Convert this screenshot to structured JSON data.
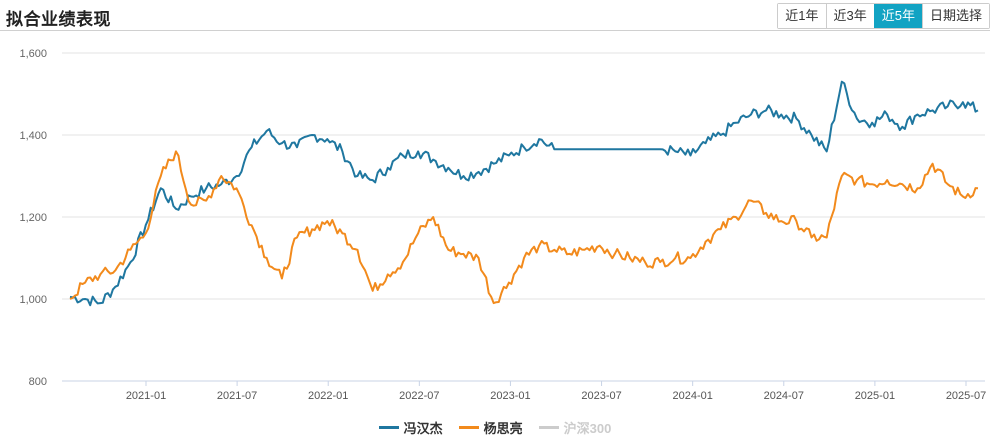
{
  "header": {
    "title": "拟合业绩表现"
  },
  "range_buttons": [
    {
      "label": "近1年",
      "active": false
    },
    {
      "label": "近3年",
      "active": false
    },
    {
      "label": "近5年",
      "active": true
    },
    {
      "label": "日期选择",
      "active": false
    }
  ],
  "legend": [
    {
      "label": "冯汉杰",
      "color": "#1f77a0",
      "enabled": true
    },
    {
      "label": "杨思亮",
      "color": "#f28a1c",
      "enabled": true
    },
    {
      "label": "沪深300",
      "color": "#cccccc",
      "enabled": false
    }
  ],
  "chart_data": {
    "type": "line",
    "title": "拟合业绩表现",
    "xlabel": "",
    "ylabel": "",
    "ylim": [
      800,
      1600
    ],
    "yticks": [
      "800",
      "1,000",
      "1,200",
      "1,400",
      "1,600"
    ],
    "xticks": [
      "2021-01",
      "2021-07",
      "2022-01",
      "2022-07",
      "2023-01",
      "2023-07",
      "2024-01",
      "2024-07",
      "2025-01",
      "2025-07"
    ],
    "grid": true,
    "legend_position": "bottom",
    "x": [
      "2020-08",
      "2020-09",
      "2020-10",
      "2020-11",
      "2020-12",
      "2021-01",
      "2021-02",
      "2021-03",
      "2021-04",
      "2021-05",
      "2021-06",
      "2021-07",
      "2021-08",
      "2021-09",
      "2021-10",
      "2021-11",
      "2021-12",
      "2022-01",
      "2022-02",
      "2022-03",
      "2022-04",
      "2022-05",
      "2022-06",
      "2022-07",
      "2022-08",
      "2022-09",
      "2022-10",
      "2022-11",
      "2022-12",
      "2023-01",
      "2023-02",
      "2023-03",
      "2023-04",
      "2023-05",
      "2023-06",
      "2023-07",
      "2023-08",
      "2023-09",
      "2023-10",
      "2023-11",
      "2023-12",
      "2024-01",
      "2024-02",
      "2024-03",
      "2024-04",
      "2024-05",
      "2024-06",
      "2024-07",
      "2024-08",
      "2024-09",
      "2024-10",
      "2024-11",
      "2024-12",
      "2025-01",
      "2025-02",
      "2025-03",
      "2025-04",
      "2025-05",
      "2025-06",
      "2025-07",
      "2025-08"
    ],
    "series": [
      {
        "name": "冯汉杰",
        "color": "#1f77a0",
        "values": [
          1005,
          1000,
          990,
          1030,
          1090,
          1180,
          1270,
          1220,
          1250,
          1270,
          1280,
          1300,
          1370,
          1410,
          1380,
          1370,
          1400,
          1390,
          1360,
          1300,
          1290,
          1320,
          1350,
          1360,
          1340,
          1320,
          1300,
          1310,
          1330,
          1350,
          1370,
          1390,
          1365,
          1365,
          1365,
          1365,
          1365,
          1365,
          1365,
          1365,
          1360,
          1350,
          1380,
          1400,
          1430,
          1450,
          1460,
          1450,
          1440,
          1400,
          1360,
          1530,
          1440,
          1430,
          1450,
          1420,
          1450,
          1460,
          1470,
          1480,
          1460
        ]
      },
      {
        "name": "杨思亮",
        "color": "#f28a1c",
        "values": [
          1000,
          1040,
          1060,
          1070,
          1120,
          1160,
          1300,
          1360,
          1230,
          1240,
          1300,
          1270,
          1180,
          1100,
          1050,
          1150,
          1170,
          1190,
          1160,
          1120,
          1020,
          1060,
          1090,
          1160,
          1200,
          1120,
          1110,
          1100,
          990,
          1040,
          1100,
          1130,
          1120,
          1110,
          1120,
          1130,
          1110,
          1100,
          1090,
          1090,
          1100,
          1100,
          1140,
          1170,
          1200,
          1240,
          1210,
          1190,
          1190,
          1150,
          1150,
          1300,
          1290,
          1280,
          1290,
          1280,
          1270,
          1330,
          1280,
          1250,
          1270
        ]
      },
      {
        "name": "沪深300",
        "color": "#cccccc",
        "values": []
      }
    ]
  }
}
